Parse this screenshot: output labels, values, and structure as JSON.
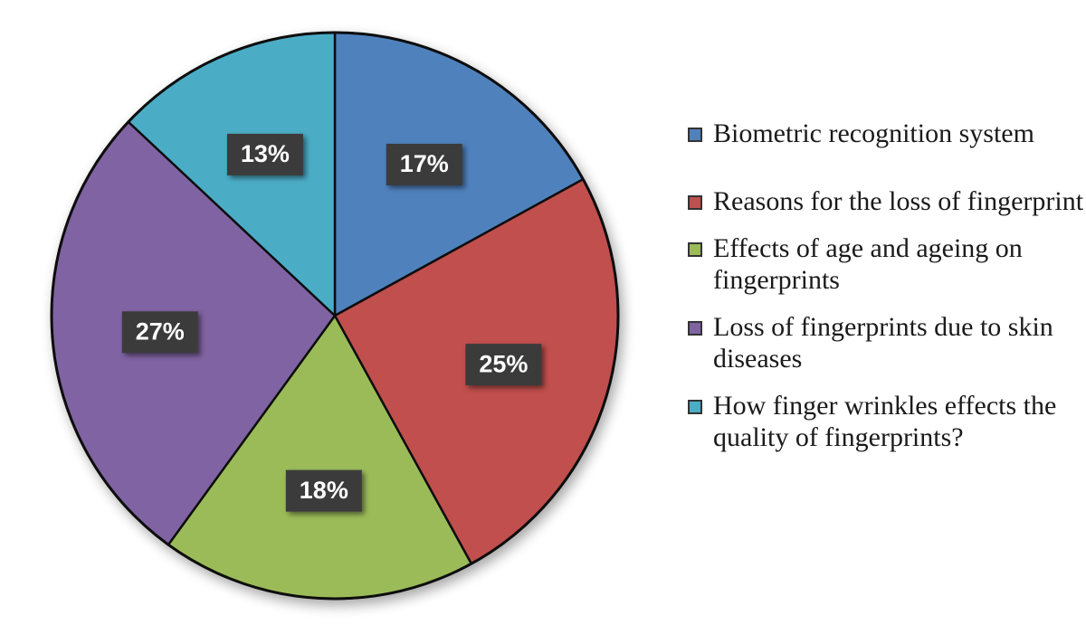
{
  "chart_data": {
    "type": "pie",
    "slices": [
      {
        "label": "Biometric recognition system",
        "value": 17,
        "display": "17%",
        "color": "#4f81bd"
      },
      {
        "label": "Reasons for the loss of fingerprint",
        "value": 25,
        "display": "25%",
        "color": "#c0504d"
      },
      {
        "label": "Effects of age and ageing on fingerprints",
        "value": 18,
        "display": "18%",
        "color": "#9bbb59"
      },
      {
        "label": "Loss of fingerprints due to skin diseases",
        "value": 27,
        "display": "27%",
        "color": "#8064a2"
      },
      {
        "label": "How finger wrinkles effects the quality of fingerprints?",
        "value": 13,
        "display": "13%",
        "color": "#4bacc6"
      }
    ],
    "legend_position": "right",
    "data_label_style": "dark boxes",
    "start_angle": "top, clockwise"
  },
  "legend": {
    "items": [
      {
        "label": "Biometric recognition system",
        "color": "#4f81bd"
      },
      {
        "label": "Reasons for the loss of fingerprint",
        "color": "#c0504d"
      },
      {
        "label": "Effects of age and ageing on fingerprints",
        "color": "#9bbb59"
      },
      {
        "label": "Loss of fingerprints due to skin diseases",
        "color": "#8064a2"
      },
      {
        "label": "How finger wrinkles effects the quality of fingerprints?",
        "color": "#4bacc6"
      }
    ]
  }
}
